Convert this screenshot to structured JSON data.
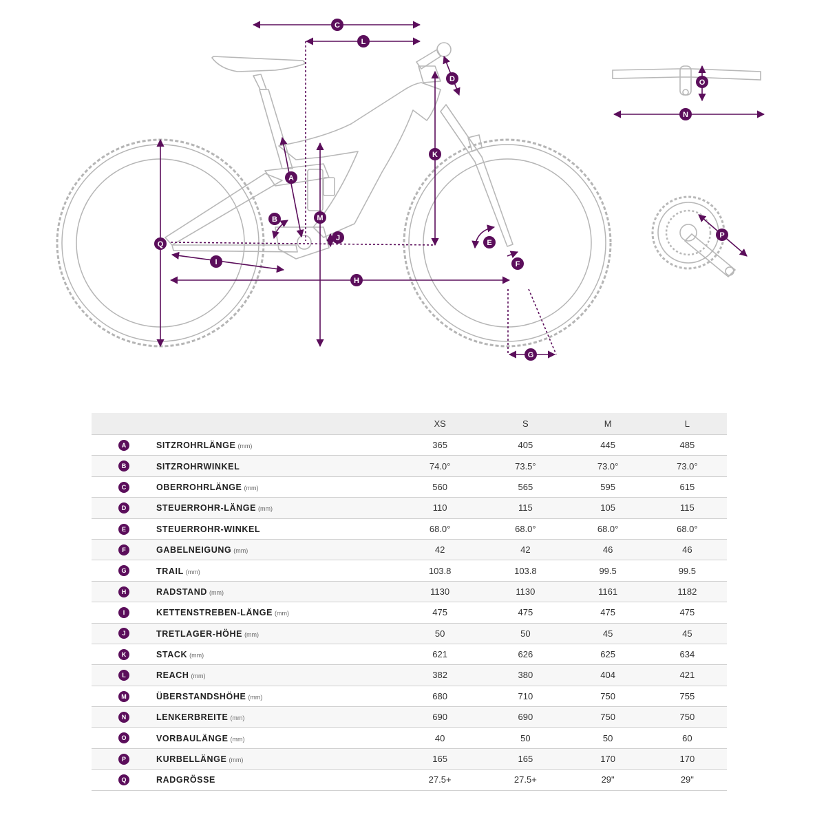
{
  "diagram": {
    "labels": {
      "A": "A",
      "B": "B",
      "C": "C",
      "D": "D",
      "E": "E",
      "F": "F",
      "G": "G",
      "H": "H",
      "I": "I",
      "J": "J",
      "K": "K",
      "L": "L",
      "M": "M",
      "N": "N",
      "O": "O",
      "P": "P",
      "Q": "Q"
    }
  },
  "table": {
    "headers": [
      "XS",
      "S",
      "M",
      "L"
    ],
    "rows": [
      {
        "badge": "A",
        "name": "SITZROHRLÄNGE",
        "unit": "(mm)",
        "values": [
          "365",
          "405",
          "445",
          "485"
        ]
      },
      {
        "badge": "B",
        "name": "SITZROHRWINKEL",
        "unit": "",
        "values": [
          "74.0°",
          "73.5°",
          "73.0°",
          "73.0°"
        ]
      },
      {
        "badge": "C",
        "name": "OBERROHRLÄNGE",
        "unit": "(mm)",
        "values": [
          "560",
          "565",
          "595",
          "615"
        ]
      },
      {
        "badge": "D",
        "name": "STEUERROHR-LÄNGE",
        "unit": "(mm)",
        "values": [
          "110",
          "115",
          "105",
          "115"
        ]
      },
      {
        "badge": "E",
        "name": "STEUERROHR-WINKEL",
        "unit": "",
        "values": [
          "68.0°",
          "68.0°",
          "68.0°",
          "68.0°"
        ]
      },
      {
        "badge": "F",
        "name": "GABELNEIGUNG",
        "unit": "(mm)",
        "values": [
          "42",
          "42",
          "46",
          "46"
        ]
      },
      {
        "badge": "G",
        "name": "TRAIL",
        "unit": "(mm)",
        "values": [
          "103.8",
          "103.8",
          "99.5",
          "99.5"
        ]
      },
      {
        "badge": "H",
        "name": "RADSTAND",
        "unit": "(mm)",
        "values": [
          "1130",
          "1130",
          "1161",
          "1182"
        ]
      },
      {
        "badge": "I",
        "name": "KETTENSTREBEN-LÄNGE",
        "unit": "(mm)",
        "values": [
          "475",
          "475",
          "475",
          "475"
        ]
      },
      {
        "badge": "J",
        "name": "TRETLAGER-HÖHE",
        "unit": "(mm)",
        "values": [
          "50",
          "50",
          "45",
          "45"
        ]
      },
      {
        "badge": "K",
        "name": "STACK",
        "unit": "(mm)",
        "values": [
          "621",
          "626",
          "625",
          "634"
        ]
      },
      {
        "badge": "L",
        "name": "REACH",
        "unit": "(mm)",
        "values": [
          "382",
          "380",
          "404",
          "421"
        ]
      },
      {
        "badge": "M",
        "name": "ÜBERSTANDSHÖHE",
        "unit": "(mm)",
        "values": [
          "680",
          "710",
          "750",
          "755"
        ]
      },
      {
        "badge": "N",
        "name": "LENKERBREITE",
        "unit": "(mm)",
        "values": [
          "690",
          "690",
          "750",
          "750"
        ]
      },
      {
        "badge": "O",
        "name": "VORBAULÄNGE",
        "unit": "(mm)",
        "values": [
          "40",
          "50",
          "50",
          "60"
        ]
      },
      {
        "badge": "P",
        "name": "KURBELLÄNGE",
        "unit": "(mm)",
        "values": [
          "165",
          "165",
          "170",
          "170"
        ]
      },
      {
        "badge": "Q",
        "name": "RADGRÖSSE",
        "unit": "",
        "values": [
          "27.5+",
          "27.5+",
          "29\"",
          "29\""
        ]
      }
    ]
  },
  "colors": {
    "accent": "#5b0e5b",
    "frame_line": "#b8b8b8",
    "row_alt": "#f7f7f7",
    "header_bg": "#eeeeee"
  }
}
